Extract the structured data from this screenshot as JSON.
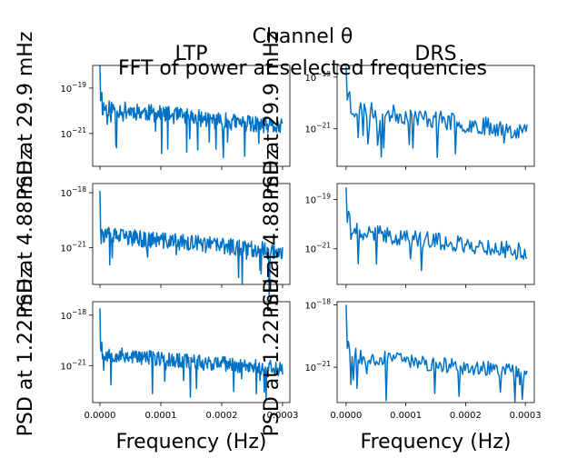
{
  "figure": {
    "suptitle_line1": "Channel θ",
    "suptitle_line2": "FFT of power at selected frequencies"
  },
  "colors": {
    "line": "#0072c6",
    "axes": "#000000",
    "background": "#ffffff"
  },
  "chart_data": [
    {
      "type": "line",
      "title": "LTP",
      "xlabel": "",
      "ylabel": "PSD at 29.9 mHz",
      "y_scale": "log",
      "xlim": [
        -1.2e-05,
        0.000312
      ],
      "ylim_log10": [
        -22.45,
        -18.0
      ],
      "x_ticks": [
        0.0,
        0.0001,
        0.0002,
        0.0003
      ],
      "x_tick_labels": [],
      "y_ticks_log10": [
        -19,
        -21
      ],
      "y_tick_labels": [
        {
          "base": "10",
          "exp": "−19"
        },
        {
          "base": "10",
          "exp": "−21"
        }
      ],
      "series": [
        {
          "n_points": 300,
          "x_max": 0.0003,
          "start_log10": -18.0,
          "level_log10": -19.85,
          "noise": 0.38,
          "dip_prob": 0.05,
          "dip_depth": 1.3,
          "seed": 11
        }
      ]
    },
    {
      "type": "line",
      "title": "DRS",
      "xlabel": "",
      "ylabel": "PSD at 29.9 mHz",
      "y_scale": "log",
      "xlim": [
        -1.5e-05,
        0.000315
      ],
      "ylim_log10": [
        -22.45,
        -18.55
      ],
      "x_ticks": [
        0.0,
        0.0001,
        0.0002,
        0.0003
      ],
      "x_tick_labels": [],
      "y_ticks_log10": [
        -19,
        -21
      ],
      "y_tick_labels": [
        {
          "base": "10",
          "exp": "−19"
        },
        {
          "base": "10",
          "exp": "−21"
        }
      ],
      "series": [
        {
          "n_points": 150,
          "x_max": 0.000303,
          "start_log10": -18.6,
          "level_log10": -20.2,
          "noise": 0.35,
          "dip_prob": 0.08,
          "dip_depth": 1.1,
          "seed": 23
        }
      ]
    },
    {
      "type": "line",
      "title": "",
      "xlabel": "",
      "ylabel": "PSD at 4.88 mHz",
      "y_scale": "log",
      "xlim": [
        -1.2e-05,
        0.000312
      ],
      "ylim_log10": [
        -23.0,
        -17.5
      ],
      "x_ticks": [
        0.0,
        0.0001,
        0.0002,
        0.0003
      ],
      "x_tick_labels": [],
      "y_ticks_log10": [
        -18,
        -21
      ],
      "y_tick_labels": [
        {
          "base": "10",
          "exp": "−18"
        },
        {
          "base": "10",
          "exp": "−21"
        }
      ],
      "series": [
        {
          "n_points": 300,
          "x_max": 0.0003,
          "start_log10": -17.9,
          "level_log10": -20.3,
          "noise": 0.45,
          "dip_prob": 0.05,
          "dip_depth": 1.5,
          "seed": 37
        }
      ]
    },
    {
      "type": "line",
      "title": "",
      "xlabel": "",
      "ylabel": "PSD at 4.88 mHz",
      "y_scale": "log",
      "xlim": [
        -1.5e-05,
        0.000315
      ],
      "ylim_log10": [
        -22.45,
        -18.35
      ],
      "x_ticks": [
        0.0,
        0.0001,
        0.0002,
        0.0003
      ],
      "x_tick_labels": [],
      "y_ticks_log10": [
        -19,
        -21
      ],
      "y_tick_labels": [
        {
          "base": "10",
          "exp": "−19"
        },
        {
          "base": "10",
          "exp": "−21"
        }
      ],
      "series": [
        {
          "n_points": 150,
          "x_max": 0.000303,
          "start_log10": -18.5,
          "level_log10": -20.25,
          "noise": 0.35,
          "dip_prob": 0.08,
          "dip_depth": 1.1,
          "seed": 41
        }
      ]
    },
    {
      "type": "line",
      "title": "",
      "xlabel": "Frequency (Hz)",
      "ylabel": "PSD at 1.22 mHz",
      "y_scale": "log",
      "xlim": [
        -1.2e-05,
        0.000312
      ],
      "ylim_log10": [
        -23.2,
        -17.2
      ],
      "x_ticks": [
        0.0,
        0.0001,
        0.0002,
        0.0003
      ],
      "x_tick_labels": [
        "0.0000",
        "0.0001",
        "0.0002",
        "0.0003"
      ],
      "y_ticks_log10": [
        -18,
        -21
      ],
      "y_tick_labels": [
        {
          "base": "10",
          "exp": "−18"
        },
        {
          "base": "10",
          "exp": "−21"
        }
      ],
      "series": [
        {
          "n_points": 300,
          "x_max": 0.0003,
          "start_log10": -17.6,
          "level_log10": -20.3,
          "noise": 0.45,
          "dip_prob": 0.05,
          "dip_depth": 1.6,
          "seed": 53
        }
      ]
    },
    {
      "type": "line",
      "title": "",
      "xlabel": "Frequency (Hz)",
      "ylabel": "PSD at 1.22 mHz",
      "y_scale": "log",
      "xlim": [
        -1.5e-05,
        0.000315
      ],
      "ylim_log10": [
        -22.7,
        -17.85
      ],
      "x_ticks": [
        0.0,
        0.0001,
        0.0002,
        0.0003
      ],
      "x_tick_labels": [
        "0.0000",
        "0.0001",
        "0.0002",
        "0.0003"
      ],
      "y_ticks_log10": [
        -18,
        -21
      ],
      "y_tick_labels": [
        {
          "base": "10",
          "exp": "−18"
        },
        {
          "base": "10",
          "exp": "−21"
        }
      ],
      "series": [
        {
          "n_points": 150,
          "x_max": 0.000303,
          "start_log10": -18.0,
          "level_log10": -20.4,
          "noise": 0.38,
          "dip_prob": 0.08,
          "dip_depth": 1.2,
          "seed": 67
        }
      ]
    }
  ]
}
